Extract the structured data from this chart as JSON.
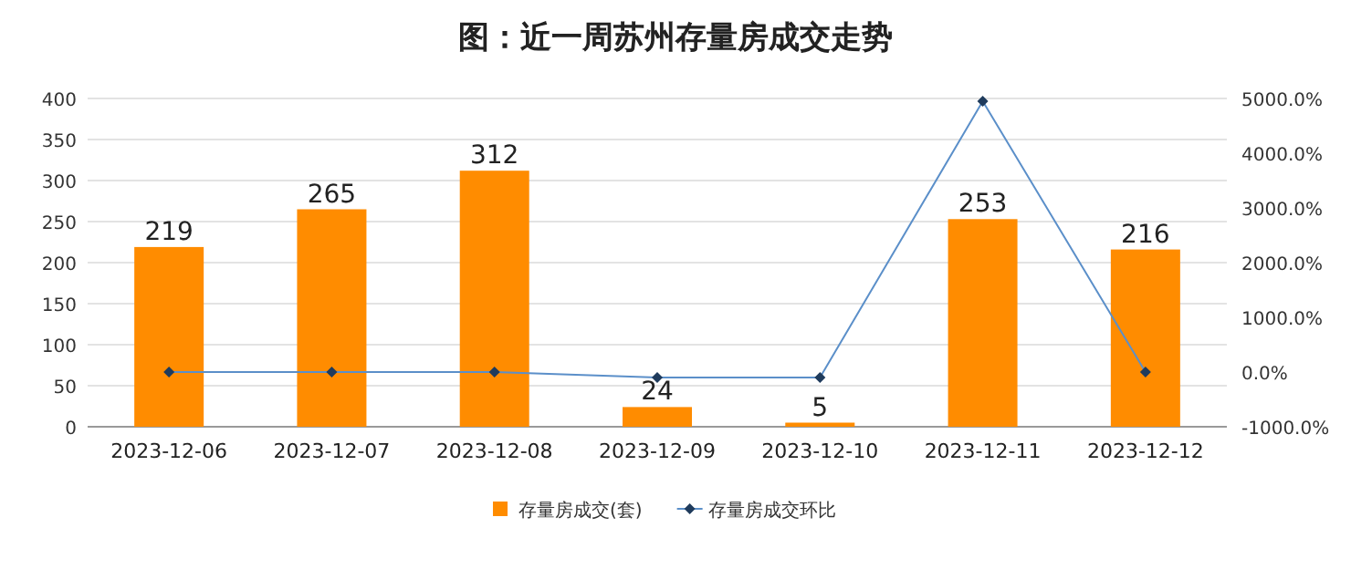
{
  "chart_data": {
    "type": "bar",
    "title": "图：近一周苏州存量房成交走势",
    "categories": [
      "2023-12-06",
      "2023-12-07",
      "2023-12-08",
      "2023-12-09",
      "2023-12-10",
      "2023-12-11",
      "2023-12-12"
    ],
    "series": [
      {
        "name": "存量房成交(套)",
        "color": "#ff8c00",
        "values": [
          219,
          265,
          312,
          24,
          5,
          253,
          216
        ],
        "data_labels": true
      },
      {
        "name": "存量房成交环比",
        "type": "line",
        "axis": "y2",
        "color": "#5b8fc9",
        "marker": "diamond",
        "values": [
          0,
          0,
          0,
          -100,
          -100,
          4950,
          0
        ]
      }
    ],
    "ylim": [
      0,
      400
    ],
    "yticks": [
      0,
      50,
      100,
      150,
      200,
      250,
      300,
      350,
      400
    ],
    "y2lim": [
      -1000,
      5000
    ],
    "y2ticks": [
      {
        "value": -1000,
        "label": "-1000.0%"
      },
      {
        "value": 0,
        "label": "0.0%"
      },
      {
        "value": 1000,
        "label": "1000.0%"
      },
      {
        "value": 2000,
        "label": "2000.0%"
      },
      {
        "value": 3000,
        "label": "3000.0%"
      },
      {
        "value": 4000,
        "label": "4000.0%"
      },
      {
        "value": 5000,
        "label": "5000.0%"
      }
    ],
    "grid": "y",
    "legend": "bottom"
  }
}
